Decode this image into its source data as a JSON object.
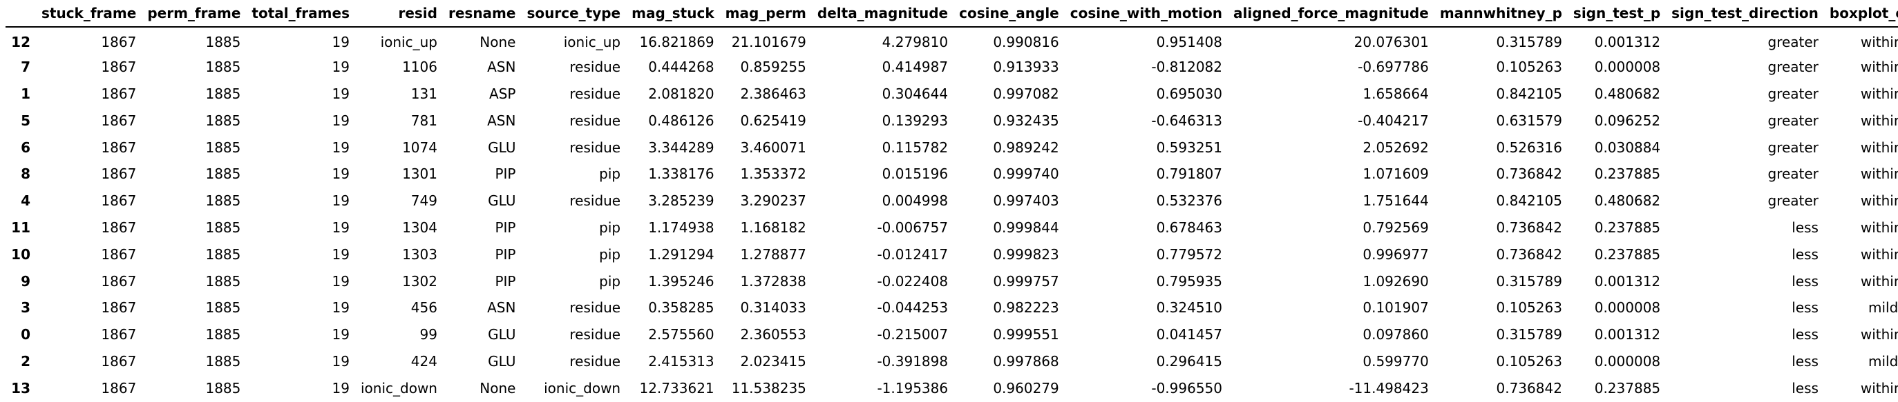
{
  "table": {
    "index_header": "",
    "columns": [
      "stuck_frame",
      "perm_frame",
      "total_frames",
      "resid",
      "resname",
      "source_type",
      "mag_stuck",
      "mag_perm",
      "delta_magnitude",
      "cosine_angle",
      "cosine_with_motion",
      "aligned_force_magnitude",
      "mannwhitney_p",
      "sign_test_p",
      "sign_test_direction",
      "boxplot_outlier"
    ],
    "rows": [
      {
        "index": "12",
        "cells": [
          "1867",
          "1885",
          "19",
          "ionic_up",
          "None",
          "ionic_up",
          "16.821869",
          "21.101679",
          "4.279810",
          "0.990816",
          "0.951408",
          "20.076301",
          "0.315789",
          "0.001312",
          "greater",
          "within range"
        ]
      },
      {
        "index": "7",
        "cells": [
          "1867",
          "1885",
          "19",
          "1106",
          "ASN",
          "residue",
          "0.444268",
          "0.859255",
          "0.414987",
          "0.913933",
          "-0.812082",
          "-0.697786",
          "0.105263",
          "0.000008",
          "greater",
          "within range"
        ]
      },
      {
        "index": "1",
        "cells": [
          "1867",
          "1885",
          "19",
          "131",
          "ASP",
          "residue",
          "2.081820",
          "2.386463",
          "0.304644",
          "0.997082",
          "0.695030",
          "1.658664",
          "0.842105",
          "0.480682",
          "greater",
          "within range"
        ]
      },
      {
        "index": "5",
        "cells": [
          "1867",
          "1885",
          "19",
          "781",
          "ASN",
          "residue",
          "0.486126",
          "0.625419",
          "0.139293",
          "0.932435",
          "-0.646313",
          "-0.404217",
          "0.631579",
          "0.096252",
          "greater",
          "within range"
        ]
      },
      {
        "index": "6",
        "cells": [
          "1867",
          "1885",
          "19",
          "1074",
          "GLU",
          "residue",
          "3.344289",
          "3.460071",
          "0.115782",
          "0.989242",
          "0.593251",
          "2.052692",
          "0.526316",
          "0.030884",
          "greater",
          "within range"
        ]
      },
      {
        "index": "8",
        "cells": [
          "1867",
          "1885",
          "19",
          "1301",
          "PIP",
          "pip",
          "1.338176",
          "1.353372",
          "0.015196",
          "0.999740",
          "0.791807",
          "1.071609",
          "0.736842",
          "0.237885",
          "greater",
          "within range"
        ]
      },
      {
        "index": "4",
        "cells": [
          "1867",
          "1885",
          "19",
          "749",
          "GLU",
          "residue",
          "3.285239",
          "3.290237",
          "0.004998",
          "0.997403",
          "0.532376",
          "1.751644",
          "0.842105",
          "0.480682",
          "greater",
          "within range"
        ]
      },
      {
        "index": "11",
        "cells": [
          "1867",
          "1885",
          "19",
          "1304",
          "PIP",
          "pip",
          "1.174938",
          "1.168182",
          "-0.006757",
          "0.999844",
          "0.678463",
          "0.792569",
          "0.736842",
          "0.237885",
          "less",
          "within range"
        ]
      },
      {
        "index": "10",
        "cells": [
          "1867",
          "1885",
          "19",
          "1303",
          "PIP",
          "pip",
          "1.291294",
          "1.278877",
          "-0.012417",
          "0.999823",
          "0.779572",
          "0.996977",
          "0.736842",
          "0.237885",
          "less",
          "within range"
        ]
      },
      {
        "index": "9",
        "cells": [
          "1867",
          "1885",
          "19",
          "1302",
          "PIP",
          "pip",
          "1.395246",
          "1.372838",
          "-0.022408",
          "0.999757",
          "0.795935",
          "1.092690",
          "0.315789",
          "0.001312",
          "less",
          "within range"
        ]
      },
      {
        "index": "3",
        "cells": [
          "1867",
          "1885",
          "19",
          "456",
          "ASN",
          "residue",
          "0.358285",
          "0.314033",
          "-0.044253",
          "0.982223",
          "0.324510",
          "0.101907",
          "0.105263",
          "0.000008",
          "less",
          "mild outlier"
        ]
      },
      {
        "index": "0",
        "cells": [
          "1867",
          "1885",
          "19",
          "99",
          "GLU",
          "residue",
          "2.575560",
          "2.360553",
          "-0.215007",
          "0.999551",
          "0.041457",
          "0.097860",
          "0.315789",
          "0.001312",
          "less",
          "within range"
        ]
      },
      {
        "index": "2",
        "cells": [
          "1867",
          "1885",
          "19",
          "424",
          "GLU",
          "residue",
          "2.415313",
          "2.023415",
          "-0.391898",
          "0.997868",
          "0.296415",
          "0.599770",
          "0.105263",
          "0.000008",
          "less",
          "mild outlier"
        ]
      },
      {
        "index": "13",
        "cells": [
          "1867",
          "1885",
          "19",
          "ionic_down",
          "None",
          "ionic_down",
          "12.733621",
          "11.538235",
          "-1.195386",
          "0.960279",
          "-0.996550",
          "-11.498423",
          "0.736842",
          "0.237885",
          "less",
          "within range"
        ]
      }
    ]
  }
}
